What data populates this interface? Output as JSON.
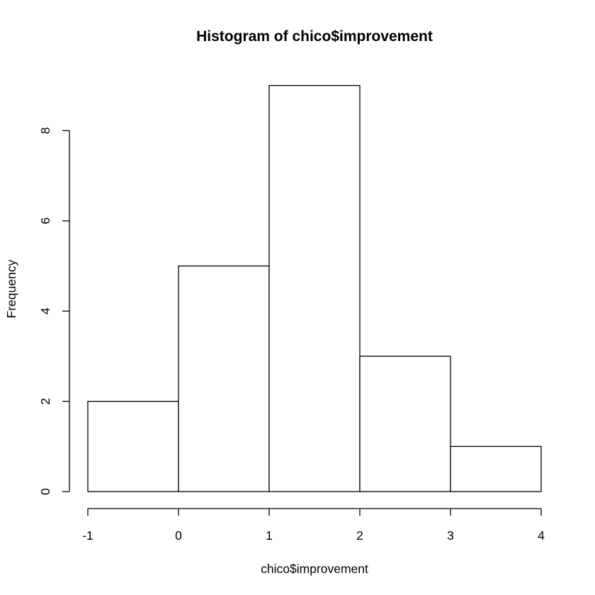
{
  "chart_data": {
    "type": "bar",
    "title": "Histogram of chico$improvement",
    "xlabel": "chico$improvement",
    "ylabel": "Frequency",
    "bins": [
      {
        "from": -1,
        "to": 0,
        "count": 2
      },
      {
        "from": 0,
        "to": 1,
        "count": 5
      },
      {
        "from": 1,
        "to": 2,
        "count": 9
      },
      {
        "from": 2,
        "to": 3,
        "count": 3
      },
      {
        "from": 3,
        "to": 4,
        "count": 1
      }
    ],
    "xlim": [
      -1,
      4
    ],
    "ylim": [
      0,
      9
    ],
    "x_ticks": [
      -1,
      0,
      1,
      2,
      3,
      4
    ],
    "x_tick_labels": [
      "-1",
      "0",
      "1",
      "2",
      "3",
      "4"
    ],
    "y_ticks": [
      0,
      2,
      4,
      6,
      8
    ],
    "y_tick_labels": [
      "0",
      "2",
      "4",
      "6",
      "8"
    ],
    "grid": false,
    "colors": {
      "bar_fill": "#ffffff",
      "bar_stroke": "#000000",
      "background": "#ffffff"
    }
  }
}
